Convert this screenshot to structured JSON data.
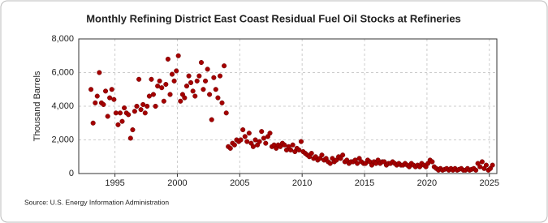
{
  "chart_data": {
    "type": "scatter",
    "title": "Monthly Refining District East Coast Residual Fuel Oil Stocks at Refineries",
    "y_label": "Thousand Barrels",
    "source": "Source: U.S. Energy Information Administration",
    "color": "#a50000",
    "xlim": [
      1992.1,
      2025.6
    ],
    "xticks": [
      1995,
      2000,
      2005,
      2010,
      2015,
      2020,
      2025
    ],
    "ylim": [
      0,
      8000
    ],
    "yticks": [
      0,
      {
        "value": 2000,
        "label": "2,000"
      },
      {
        "value": 4000,
        "label": "4,000"
      },
      {
        "value": 6000,
        "label": "6,000"
      },
      {
        "value": 8000,
        "label": "8,000"
      }
    ],
    "grid": true,
    "x": [
      1993.08,
      1993.25,
      1993.42,
      1993.58,
      1993.75,
      1993.92,
      1994.08,
      1994.25,
      1994.42,
      1994.58,
      1994.75,
      1994.92,
      1995.08,
      1995.25,
      1995.42,
      1995.58,
      1995.75,
      1995.92,
      1996.08,
      1996.25,
      1996.42,
      1996.58,
      1996.75,
      1996.92,
      1997.08,
      1997.25,
      1997.42,
      1997.58,
      1997.75,
      1997.92,
      1998.08,
      1998.25,
      1998.42,
      1998.58,
      1998.75,
      1998.92,
      1999.08,
      1999.25,
      1999.42,
      1999.58,
      1999.75,
      1999.92,
      2000.08,
      2000.25,
      2000.42,
      2000.58,
      2000.75,
      2000.92,
      2001.08,
      2001.25,
      2001.42,
      2001.58,
      2001.75,
      2001.92,
      2002.08,
      2002.25,
      2002.42,
      2002.58,
      2002.75,
      2002.92,
      2003.08,
      2003.25,
      2003.42,
      2003.58,
      2003.75,
      2003.92,
      2004.08,
      2004.25,
      2004.42,
      2004.58,
      2004.75,
      2004.92,
      2005.08,
      2005.25,
      2005.42,
      2005.58,
      2005.75,
      2005.92,
      2006.08,
      2006.25,
      2006.42,
      2006.58,
      2006.75,
      2006.92,
      2007.08,
      2007.25,
      2007.42,
      2007.58,
      2007.75,
      2007.92,
      2008.08,
      2008.25,
      2008.42,
      2008.58,
      2008.75,
      2008.92,
      2009.08,
      2009.25,
      2009.42,
      2009.58,
      2009.75,
      2009.92,
      2010.08,
      2010.25,
      2010.42,
      2010.58,
      2010.75,
      2010.92,
      2011.08,
      2011.25,
      2011.42,
      2011.58,
      2011.75,
      2011.92,
      2012.08,
      2012.25,
      2012.42,
      2012.58,
      2012.75,
      2012.92,
      2013.08,
      2013.25,
      2013.42,
      2013.58,
      2013.75,
      2013.92,
      2014.08,
      2014.25,
      2014.42,
      2014.58,
      2014.75,
      2014.92,
      2015.08,
      2015.25,
      2015.42,
      2015.58,
      2015.75,
      2015.92,
      2016.08,
      2016.25,
      2016.42,
      2016.58,
      2016.75,
      2016.92,
      2017.08,
      2017.25,
      2017.42,
      2017.58,
      2017.75,
      2017.92,
      2018.08,
      2018.25,
      2018.42,
      2018.58,
      2018.75,
      2018.92,
      2019.08,
      2019.25,
      2019.42,
      2019.58,
      2019.75,
      2019.92,
      2020.08,
      2020.25,
      2020.42,
      2020.58,
      2020.75,
      2020.92,
      2021.08,
      2021.25,
      2021.42,
      2021.58,
      2021.75,
      2021.92,
      2022.08,
      2022.25,
      2022.42,
      2022.58,
      2022.75,
      2022.92,
      2023.08,
      2023.25,
      2023.42,
      2023.58,
      2023.75,
      2023.92,
      2024.08,
      2024.25,
      2024.42,
      2024.58,
      2024.75,
      2024.92,
      2025.08,
      2025.25
    ],
    "values": [
      5000,
      3000,
      4200,
      4600,
      6000,
      4200,
      4100,
      4900,
      3400,
      4500,
      5000,
      4400,
      3600,
      2900,
      3600,
      3100,
      3900,
      3600,
      3500,
      2100,
      2600,
      3700,
      4000,
      5600,
      3800,
      4100,
      3600,
      4000,
      4600,
      5600,
      4700,
      4000,
      5200,
      5500,
      5100,
      4300,
      5300,
      6800,
      4700,
      5900,
      5500,
      6100,
      7000,
      4300,
      4700,
      4500,
      5200,
      5800,
      5400,
      4900,
      4600,
      5500,
      5800,
      6600,
      5000,
      5500,
      6200,
      4700,
      3200,
      5700,
      5000,
      4500,
      5800,
      4200,
      6400,
      3600,
      1600,
      1500,
      1800,
      1700,
      2000,
      1900,
      2000,
      2600,
      2200,
      1900,
      2400,
      1800,
      1600,
      2000,
      1700,
      1900,
      2500,
      2100,
      1800,
      2200,
      2400,
      1600,
      1700,
      1500,
      1700,
      1600,
      1800,
      1700,
      1400,
      1600,
      1400,
      1700,
      1300,
      1500,
      1400,
      1900,
      1300,
      1200,
      1100,
      1000,
      1200,
      900,
      1000,
      800,
      900,
      1100,
      800,
      900,
      700,
      600,
      900,
      700,
      800,
      1000,
      900,
      1100,
      700,
      800,
      600,
      700,
      700,
      800,
      600,
      900,
      700,
      600,
      600,
      800,
      700,
      500,
      700,
      600,
      800,
      600,
      700,
      700,
      500,
      600,
      600,
      700,
      600,
      500,
      600,
      500,
      500,
      600,
      500,
      400,
      600,
      500,
      400,
      500,
      400,
      600,
      500,
      400,
      600,
      800,
      700,
      400,
      300,
      200,
      300,
      200,
      250,
      300,
      200,
      300,
      200,
      300,
      200,
      250,
      300,
      200,
      200,
      300,
      200,
      250,
      300,
      200,
      600,
      400,
      700,
      300,
      500,
      200,
      300,
      500
    ]
  }
}
